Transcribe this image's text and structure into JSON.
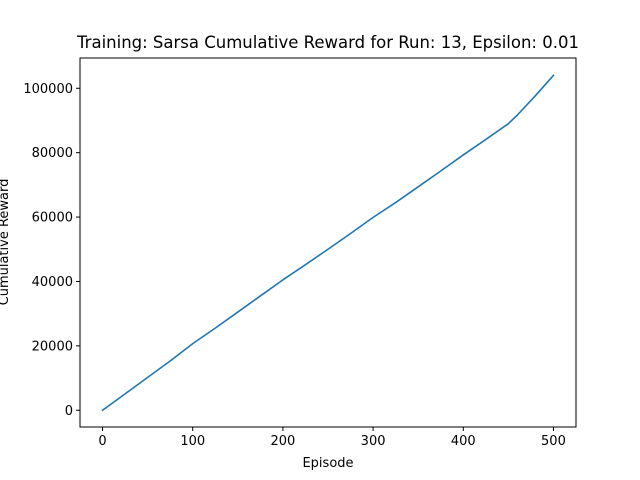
{
  "chart_data": {
    "type": "line",
    "title": "Training: Sarsa Cumulative Reward for Run: 13, Epsilon: 0.01",
    "xlabel": "Episode",
    "ylabel": "Cumulative Reward",
    "xlim": [
      -25,
      525
    ],
    "ylim": [
      -5200,
      109400
    ],
    "xticks": [
      0,
      100,
      200,
      300,
      400,
      500
    ],
    "xtick_labels": [
      "0",
      "100",
      "200",
      "300",
      "400",
      "500"
    ],
    "yticks": [
      0,
      20000,
      40000,
      60000,
      80000,
      100000
    ],
    "ytick_labels": [
      "0",
      "20000",
      "40000",
      "60000",
      "80000",
      "100000"
    ],
    "grid": false,
    "series": [
      {
        "color": "#1f77b4",
        "x": [
          0,
          25,
          50,
          75,
          100,
          125,
          150,
          175,
          200,
          225,
          250,
          275,
          300,
          325,
          350,
          375,
          400,
          425,
          450,
          460,
          480,
          500
        ],
        "y": [
          0,
          5100,
          10200,
          15300,
          20700,
          25500,
          30500,
          35500,
          40500,
          45200,
          50000,
          54900,
          59900,
          64500,
          69400,
          74300,
          79300,
          84100,
          89000,
          91700,
          97700,
          104000
        ]
      }
    ]
  }
}
